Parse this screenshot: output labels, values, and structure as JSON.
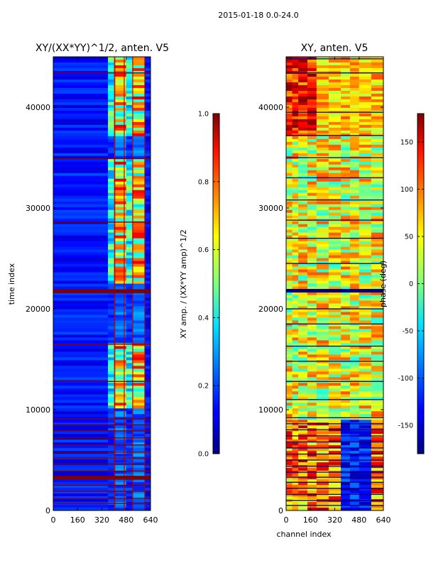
{
  "chart_data": [
    {
      "type": "heatmap",
      "suptitle": "2015-01-18 0.0-24.0",
      "title": "XY/(XX*YY)^1/2, anten. V5",
      "xlabel": "",
      "ylabel": "time index",
      "xlim": [
        0,
        640
      ],
      "ylim": [
        0,
        45000
      ],
      "xticks": [
        "0",
        "160",
        "320",
        "480",
        "640"
      ],
      "yticks": [
        "0",
        "10000",
        "20000",
        "30000",
        "40000"
      ],
      "colorbar": {
        "label": "XY amp. / (XX*YY amp)^1/2",
        "range": [
          0.0,
          1.0
        ],
        "ticks": [
          "0.0",
          "0.2",
          "0.4",
          "0.6",
          "0.8",
          "1.0"
        ],
        "cmap": "jet"
      }
    },
    {
      "type": "heatmap",
      "title": "XY, anten. V5",
      "xlabel": "channel index",
      "ylabel": "phase (deg)",
      "xlim": [
        0,
        640
      ],
      "ylim": [
        0,
        45000
      ],
      "xticks": [
        "0",
        "160",
        "320",
        "480",
        "640"
      ],
      "yticks": [
        "0",
        "10000",
        "20000",
        "30000",
        "40000"
      ],
      "colorbar": {
        "label": "phase (deg)",
        "range": [
          -180,
          180
        ],
        "ticks": [
          "-150",
          "-100",
          "-50",
          "0",
          "50",
          "100",
          "150"
        ],
        "cmap": "jet"
      }
    }
  ]
}
